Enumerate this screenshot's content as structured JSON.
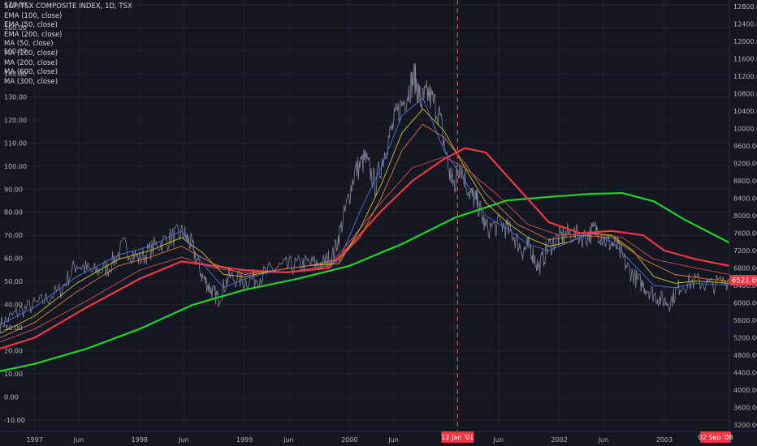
{
  "chart_data": {
    "type": "line",
    "title": "S&P/TSX COMPOSITE INDEX, 1D, TSX",
    "indicators": [
      "EMA (100, close)",
      "EMA (50, close)",
      "EMA (200, close)",
      "MA (50, close)",
      "MA (100, close)",
      "MA (200, close)",
      "MA (600, close)",
      "MA (300, close)"
    ],
    "left_axis": {
      "ticks": [
        "170.00",
        "160.00",
        "150.00",
        "140.00",
        "130.00",
        "120.00",
        "110.00",
        "100.00",
        "90.00",
        "80.00",
        "70.00",
        "60.00",
        "50.00",
        "40.00",
        "30.00",
        "20.00",
        "10.00",
        "0.00",
        "-10.00"
      ],
      "range": [
        -15,
        172
      ]
    },
    "right_axis": {
      "ticks": [
        "12800.00",
        "12400.00",
        "12000.00",
        "11600.00",
        "11200.00",
        "10800.00",
        "10400.00",
        "10000.00",
        "9600.00",
        "9200.00",
        "8800.00",
        "8400.00",
        "8000.00",
        "7600.00",
        "7200.00",
        "6800.00",
        "6400.00",
        "6000.00",
        "5600.00",
        "5200.00",
        "4800.00",
        "4400.00",
        "4000.00",
        "3600.00",
        "3200.00"
      ],
      "range": [
        3050,
        12950
      ]
    },
    "x_axis": {
      "ticks": [
        "1997",
        "Jun",
        "1998",
        "Jun",
        "1999",
        "Jun",
        "2000",
        "Jun",
        "2001",
        "Jun",
        "2002",
        "Jun",
        "2003"
      ],
      "range": [
        1996.67,
        2003.62
      ]
    },
    "last_price": {
      "label": "6521.69",
      "value": 6521.69,
      "color": "#f23645"
    },
    "crosshair": {
      "date_label": "12 Jan '01",
      "x": 2001.03,
      "color": "#f23645"
    },
    "end_date_label": "02 Sep '08",
    "price_series": {
      "name": "",
      "color": "#9aa0ae",
      "x": [
        1996.67,
        1996.85,
        1997.05,
        1997.25,
        1997.4,
        1997.55,
        1997.7,
        1997.85,
        1998.0,
        1998.15,
        1998.3,
        1998.42,
        1998.5,
        1998.6,
        1998.68,
        1998.75,
        1998.85,
        1999.0,
        1999.15,
        1999.3,
        1999.45,
        1999.6,
        1999.75,
        1999.85,
        1999.95,
        2000.05,
        2000.15,
        2000.25,
        2000.35,
        2000.45,
        2000.55,
        2000.62,
        2000.68,
        2000.75,
        2000.85,
        2000.95,
        2001.0,
        2001.05,
        2001.15,
        2001.22,
        2001.3,
        2001.45,
        2001.55,
        2001.65,
        2001.72,
        2001.8,
        2001.9,
        2002.0,
        2002.1,
        2002.25,
        2002.35,
        2002.45,
        2002.55,
        2002.65,
        2002.75,
        2002.85,
        2002.95,
        2003.05,
        2003.15,
        2003.3,
        2003.45,
        2003.62
      ],
      "y": [
        5500,
        5800,
        6000,
        6300,
        6900,
        6700,
        6800,
        7300,
        7000,
        7300,
        7500,
        7600,
        7300,
        6600,
        6300,
        6100,
        6600,
        6500,
        6600,
        6800,
        6850,
        6900,
        6900,
        7100,
        8000,
        9000,
        9300,
        8700,
        9600,
        10300,
        10800,
        11200,
        10600,
        10800,
        10400,
        9000,
        8700,
        9200,
        8500,
        8300,
        7700,
        7800,
        7600,
        7200,
        7300,
        6800,
        7300,
        7500,
        7600,
        7500,
        7700,
        7400,
        7300,
        6800,
        6500,
        6300,
        6100,
        6000,
        6400,
        6500,
        6400,
        6521.69
      ]
    },
    "series": [
      {
        "name": "",
        "color": "#22d32a",
        "x": [
          1996.67,
          1997.0,
          1997.5,
          1998.0,
          1998.5,
          1999.0,
          1999.5,
          2000.0,
          2000.5,
          2001.0,
          2001.5,
          2002.0,
          2002.3,
          2002.6,
          2002.9,
          2003.2,
          2003.62
        ],
        "y": [
          4430,
          4600,
          4950,
          5400,
          5950,
          6300,
          6550,
          6850,
          7350,
          7950,
          8350,
          8450,
          8500,
          8520,
          8330,
          7900,
          7380
        ]
      },
      {
        "name": "",
        "color": "#f23645",
        "x": [
          1996.67,
          1997.0,
          1997.5,
          1998.0,
          1998.4,
          1998.7,
          1999.0,
          1999.4,
          1999.8,
          2000.0,
          2000.3,
          2000.6,
          2000.9,
          2001.1,
          2001.3,
          2001.6,
          2001.9,
          2002.2,
          2002.5,
          2002.8,
          2003.0,
          2003.3,
          2003.62
        ],
        "y": [
          4950,
          5200,
          5900,
          6550,
          6950,
          6850,
          6750,
          6700,
          6800,
          7300,
          8100,
          8800,
          9300,
          9550,
          9450,
          8650,
          7850,
          7600,
          7650,
          7550,
          7200,
          7000,
          6850
        ]
      },
      {
        "name": "",
        "color": "#d14b5a",
        "x": [
          1996.67,
          1997.0,
          1997.5,
          1998.0,
          1998.4,
          1998.7,
          1999.0,
          1999.4,
          1999.8,
          2000.0,
          2000.3,
          2000.6,
          2000.9,
          2001.1,
          2001.4,
          2001.7,
          2002.0,
          2002.3,
          2002.6,
          2002.9,
          2003.2,
          2003.62
        ],
        "y": [
          5100,
          5400,
          6050,
          6750,
          7050,
          6800,
          6700,
          6700,
          6850,
          7400,
          8300,
          9100,
          9350,
          9100,
          8500,
          7800,
          7550,
          7600,
          7500,
          7000,
          6850,
          6650
        ]
      },
      {
        "name": "",
        "color": "#d4c022",
        "x": [
          1996.67,
          1997.0,
          1997.4,
          1997.8,
          1998.1,
          1998.4,
          1998.6,
          1998.8,
          1999.0,
          1999.3,
          1999.6,
          1999.9,
          2000.1,
          2000.3,
          2000.5,
          2000.7,
          2000.9,
          2001.1,
          2001.3,
          2001.5,
          2001.7,
          2001.9,
          2002.1,
          2002.3,
          2002.5,
          2002.7,
          2002.9,
          2003.1,
          2003.3,
          2003.62
        ],
        "y": [
          5300,
          5700,
          6450,
          7000,
          7200,
          7500,
          7150,
          6650,
          6600,
          6750,
          6850,
          6900,
          7700,
          8700,
          9900,
          10450,
          9950,
          9100,
          8300,
          7850,
          7500,
          7300,
          7400,
          7600,
          7550,
          7200,
          6600,
          6450,
          6500,
          6450
        ]
      },
      {
        "name": "",
        "color": "#5b6fd6",
        "x": [
          1996.67,
          1997.0,
          1997.4,
          1997.8,
          1998.1,
          1998.4,
          1998.6,
          1998.8,
          1999.0,
          1999.3,
          1999.6,
          1999.9,
          2000.1,
          2000.3,
          2000.5,
          2000.7,
          2000.9,
          2001.1,
          2001.3,
          2001.5,
          2001.7,
          2001.9,
          2002.1,
          2002.3,
          2002.5,
          2002.7,
          2002.9,
          2003.1,
          2003.3,
          2003.62
        ],
        "y": [
          5500,
          5900,
          6600,
          7100,
          7300,
          7650,
          6900,
          6350,
          6550,
          6750,
          6850,
          6950,
          8100,
          9100,
          10300,
          10700,
          9500,
          8800,
          8000,
          7700,
          7350,
          7200,
          7400,
          7600,
          7400,
          6900,
          6400,
          6350,
          6450,
          6400
        ]
      },
      {
        "name": "",
        "color": "#e07a3a",
        "x": [
          1996.67,
          1997.0,
          1997.4,
          1997.8,
          1998.1,
          1998.4,
          1998.7,
          1999.0,
          1999.3,
          1999.6,
          1999.9,
          2000.1,
          2000.3,
          2000.5,
          2000.7,
          2000.9,
          2001.1,
          2001.3,
          2001.6,
          2001.9,
          2002.2,
          2002.5,
          2002.8,
          2003.1,
          2003.4,
          2003.62
        ],
        "y": [
          5200,
          5550,
          6250,
          6850,
          7050,
          7300,
          6900,
          6650,
          6750,
          6850,
          7000,
          7500,
          8400,
          9500,
          10100,
          9800,
          9200,
          8500,
          7800,
          7450,
          7550,
          7500,
          7000,
          6650,
          6550,
          6500
        ]
      }
    ]
  }
}
